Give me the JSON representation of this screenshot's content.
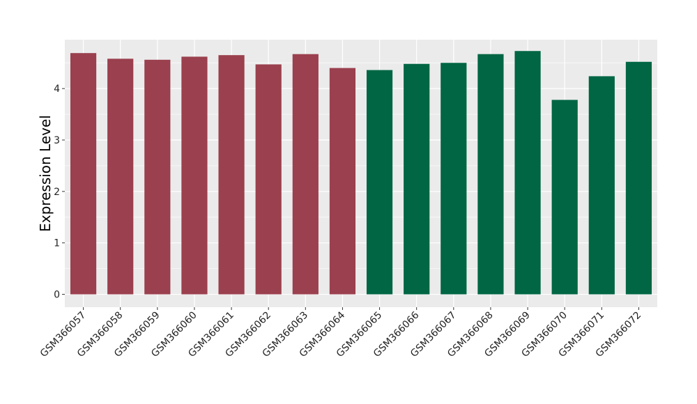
{
  "chart_data": {
    "type": "bar",
    "ylabel": "Expression Level",
    "xlabel": "",
    "ylim": [
      -0.25,
      4.95
    ],
    "yticks": [
      0,
      1,
      2,
      3,
      4
    ],
    "grid": true,
    "categories": [
      "GSM366057",
      "GSM366058",
      "GSM366059",
      "GSM366060",
      "GSM366061",
      "GSM366062",
      "GSM366063",
      "GSM366064",
      "GSM366065",
      "GSM366066",
      "GSM366067",
      "GSM366068",
      "GSM366069",
      "GSM366070",
      "GSM366071",
      "GSM366072"
    ],
    "values": [
      4.69,
      4.58,
      4.56,
      4.62,
      4.65,
      4.47,
      4.67,
      4.4,
      4.36,
      4.48,
      4.5,
      4.67,
      4.73,
      3.78,
      4.24,
      4.52
    ],
    "groups": [
      0,
      0,
      0,
      0,
      0,
      0,
      0,
      0,
      1,
      1,
      1,
      1,
      1,
      1,
      1,
      1
    ],
    "colors": [
      "#9b404e",
      "#006643"
    ],
    "panel_background": "#ebebeb",
    "grid_color": "#ffffff"
  }
}
